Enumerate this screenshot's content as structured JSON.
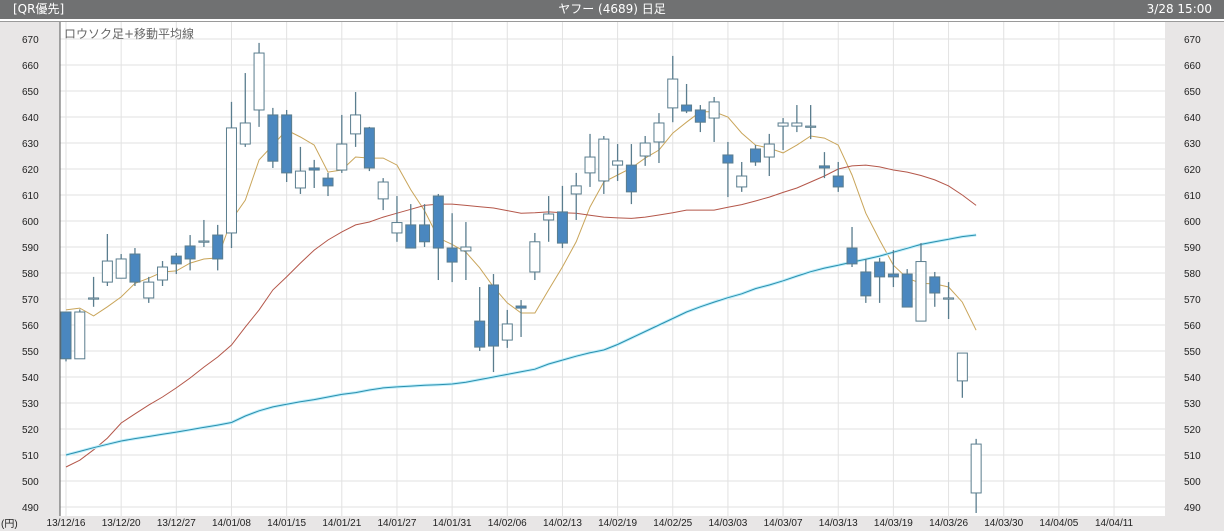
{
  "header": {
    "feed_label": "[QR優先]",
    "title": "ヤフー (4689) 日足",
    "timestamp": "3/28 15:00"
  },
  "colors": {
    "header_bg": "#707172",
    "axis_panel_bg": "#e8e6e6",
    "bear_fill": "#4a87bf",
    "candle_outline": "#5a7d8e",
    "ma_short": "#c9a55a",
    "ma_mid": "#b4574a",
    "ma_long": "#2a8fae"
  },
  "chart_data": {
    "type": "candlestick",
    "title": "ロウソク足+移動平均線",
    "ylabel": "(円)",
    "ylim": [
      490,
      670
    ],
    "yticks": [
      670,
      660,
      650,
      640,
      630,
      620,
      610,
      600,
      590,
      580,
      570,
      560,
      550,
      540,
      530,
      520,
      510,
      500,
      490
    ],
    "xtick_labels": [
      "13/12/16",
      "13/12/20",
      "13/12/27",
      "14/01/08",
      "14/01/15",
      "14/01/21",
      "14/01/27",
      "14/01/31",
      "14/02/06",
      "14/02/13",
      "14/02/19",
      "14/02/25",
      "14/03/03",
      "14/03/07",
      "14/03/13",
      "14/03/19",
      "14/03/26",
      "14/03/30",
      "14/04/05",
      "14/04/11"
    ],
    "grid": true,
    "candles": [
      {
        "o": 565,
        "h": 565,
        "l": 546,
        "c": 547
      },
      {
        "o": 547,
        "h": 566,
        "l": 547,
        "c": 565
      },
      {
        "o": 570,
        "h": 578.5,
        "l": 567,
        "c": 570.4
      },
      {
        "o": 576.5,
        "h": 595,
        "l": 575,
        "c": 584.6
      },
      {
        "o": 578,
        "h": 587.3,
        "l": 578,
        "c": 585.4
      },
      {
        "o": 587.3,
        "h": 589.6,
        "l": 575,
        "c": 576.5
      },
      {
        "o": 570.4,
        "h": 578.5,
        "l": 568.5,
        "c": 576.5
      },
      {
        "o": 577.3,
        "h": 584.6,
        "l": 575,
        "c": 582.3
      },
      {
        "o": 586.5,
        "h": 587.7,
        "l": 579.6,
        "c": 583.5
      },
      {
        "o": 590.4,
        "h": 594.6,
        "l": 581,
        "c": 585.4
      },
      {
        "o": 592,
        "h": 600.4,
        "l": 590,
        "c": 592.3
      },
      {
        "o": 594.6,
        "h": 598.5,
        "l": 581,
        "c": 585.4
      },
      {
        "o": 595.4,
        "h": 645.8,
        "l": 589.6,
        "c": 635.8
      },
      {
        "o": 629.6,
        "h": 656.9,
        "l": 628.5,
        "c": 637.7
      },
      {
        "o": 642.7,
        "h": 668.5,
        "l": 636.2,
        "c": 664.6
      },
      {
        "o": 640.8,
        "h": 643.5,
        "l": 620.4,
        "c": 623
      },
      {
        "o": 640.8,
        "h": 642.7,
        "l": 615,
        "c": 618.5
      },
      {
        "o": 612.7,
        "h": 628.5,
        "l": 610.4,
        "c": 619.2
      },
      {
        "o": 620.4,
        "h": 623.5,
        "l": 612.7,
        "c": 619.6
      },
      {
        "o": 616.5,
        "h": 618.5,
        "l": 609.6,
        "c": 613.5
      },
      {
        "o": 619.6,
        "h": 640.8,
        "l": 618.5,
        "c": 629.6
      },
      {
        "o": 633.5,
        "h": 649.6,
        "l": 628.5,
        "c": 640.8
      },
      {
        "o": 635.8,
        "h": 636.2,
        "l": 619.2,
        "c": 620.4
      },
      {
        "o": 608.5,
        "h": 616.5,
        "l": 604.2,
        "c": 615
      },
      {
        "o": 595.4,
        "h": 609.6,
        "l": 592,
        "c": 599.4
      },
      {
        "o": 598.5,
        "h": 606.5,
        "l": 589.6,
        "c": 589.6
      },
      {
        "o": 598.5,
        "h": 606.5,
        "l": 590,
        "c": 592
      },
      {
        "o": 609.6,
        "h": 610.4,
        "l": 577.3,
        "c": 589.6
      },
      {
        "o": 589.6,
        "h": 603,
        "l": 576.5,
        "c": 584.2
      },
      {
        "o": 588.5,
        "h": 599.6,
        "l": 577.3,
        "c": 590
      },
      {
        "o": 561.5,
        "h": 574.6,
        "l": 550,
        "c": 551.5
      },
      {
        "o": 575.4,
        "h": 579.6,
        "l": 541.9,
        "c": 551.9
      },
      {
        "o": 554.2,
        "h": 565.8,
        "l": 551.2,
        "c": 560.4
      },
      {
        "o": 567.3,
        "h": 569.6,
        "l": 555.4,
        "c": 566.5
      },
      {
        "o": 580.4,
        "h": 595.4,
        "l": 577.3,
        "c": 592
      },
      {
        "o": 600.4,
        "h": 609.6,
        "l": 592,
        "c": 602.7
      },
      {
        "o": 603.5,
        "h": 613.5,
        "l": 589.6,
        "c": 591.5
      },
      {
        "o": 610.4,
        "h": 618.5,
        "l": 600.4,
        "c": 613.5
      },
      {
        "o": 618.5,
        "h": 633.5,
        "l": 613.1,
        "c": 624.6
      },
      {
        "o": 615.4,
        "h": 632.7,
        "l": 610.4,
        "c": 631.5
      },
      {
        "o": 621.5,
        "h": 629.6,
        "l": 615.4,
        "c": 623.1
      },
      {
        "o": 621.5,
        "h": 629.6,
        "l": 606.5,
        "c": 611.2
      },
      {
        "o": 625,
        "h": 632.7,
        "l": 621.2,
        "c": 630
      },
      {
        "o": 630.4,
        "h": 641.5,
        "l": 622.3,
        "c": 637.7
      },
      {
        "o": 643.5,
        "h": 663.5,
        "l": 638,
        "c": 654.6
      },
      {
        "o": 644.6,
        "h": 652.7,
        "l": 641.5,
        "c": 642.3
      },
      {
        "o": 642.7,
        "h": 644.6,
        "l": 634.2,
        "c": 638
      },
      {
        "o": 639.6,
        "h": 647.7,
        "l": 630.4,
        "c": 645.8
      },
      {
        "o": 625.4,
        "h": 630.4,
        "l": 609.2,
        "c": 622.3
      },
      {
        "o": 613.1,
        "h": 622.7,
        "l": 611.2,
        "c": 617.3
      },
      {
        "o": 627.7,
        "h": 629.2,
        "l": 621.2,
        "c": 622.7
      },
      {
        "o": 624.6,
        "h": 633.5,
        "l": 617.3,
        "c": 629.6
      },
      {
        "o": 636.5,
        "h": 639.6,
        "l": 627.3,
        "c": 637.7
      },
      {
        "o": 636.5,
        "h": 644.6,
        "l": 634.2,
        "c": 637.7
      },
      {
        "o": 636.5,
        "h": 644.6,
        "l": 631.5,
        "c": 636.5
      },
      {
        "o": 621.2,
        "h": 626.5,
        "l": 616.5,
        "c": 620.4
      },
      {
        "o": 617.3,
        "h": 622.7,
        "l": 611.2,
        "c": 613.1
      },
      {
        "o": 589.6,
        "h": 597.7,
        "l": 582.3,
        "c": 583.5
      },
      {
        "o": 580.4,
        "h": 585.4,
        "l": 568.5,
        "c": 571.2
      },
      {
        "o": 584.2,
        "h": 585.8,
        "l": 568.5,
        "c": 578.5
      },
      {
        "o": 579.6,
        "h": 588.8,
        "l": 574.6,
        "c": 578.5
      },
      {
        "o": 579.6,
        "h": 581.5,
        "l": 566.9,
        "c": 566.9
      },
      {
        "o": 561.5,
        "h": 591.5,
        "l": 561.5,
        "c": 584.4
      },
      {
        "o": 578.5,
        "h": 580.4,
        "l": 567,
        "c": 572.3
      },
      {
        "o": 570.4,
        "h": 576.5,
        "l": 562.3,
        "c": 570.4
      },
      {
        "o": 538.5,
        "h": 549.2,
        "l": 532,
        "c": 549.2
      },
      {
        "o": 495.4,
        "h": 516.2,
        "l": 487.7,
        "c": 514.2
      }
    ],
    "moving_averages": [
      {
        "color_key": "ma_short",
        "values": [
          565.8,
          566.5,
          563.5,
          567,
          570.8,
          576,
          578,
          580.4,
          580.8,
          583.8,
          585.4,
          585.8,
          600.4,
          608,
          623.5,
          629.2,
          635,
          632.3,
          629.2,
          618.8,
          619.6,
          624.6,
          624.2,
          624.2,
          621.5,
          612,
          604,
          593.5,
          591,
          588,
          582,
          574.6,
          568.5,
          564.6,
          564.6,
          573.5,
          582.3,
          592,
          605.4,
          615,
          617.7,
          620.4,
          624.2,
          627.3,
          633.8,
          638,
          642,
          642,
          640,
          633.8,
          629.2,
          628,
          626.2,
          629.2,
          632.7,
          631.9,
          629.2,
          617.7,
          603,
          592.7,
          583,
          578,
          576,
          575.8,
          574.6,
          568.8,
          558
        ]
      },
      {
        "color_key": "ma_mid",
        "values": [
          505.4,
          508,
          512,
          516.5,
          522.3,
          525.8,
          529.2,
          532.3,
          535.8,
          539.6,
          543.8,
          547.7,
          552.3,
          559.2,
          565.8,
          573.5,
          578.5,
          583.8,
          588.8,
          592.7,
          595.8,
          598.5,
          599.6,
          601.5,
          603,
          604.5,
          606,
          606.5,
          606.5,
          606,
          605.5,
          605,
          604,
          603,
          603.2,
          603.5,
          603.2,
          603,
          602.2,
          601.5,
          601.2,
          601,
          601.5,
          602.3,
          603.2,
          604.2,
          604.2,
          604.2,
          605.3,
          606.3,
          607.7,
          609.2,
          611,
          612.7,
          615,
          617.3,
          620,
          621.2,
          621.5,
          620.8,
          619.6,
          618.8,
          617.5,
          615.8,
          613.5,
          610,
          606
        ]
      },
      {
        "color_key": "ma_long",
        "values": [
          510,
          511.4,
          512.8,
          514.1,
          515.4,
          516.3,
          517.1,
          518,
          518.8,
          519.7,
          520.6,
          521.5,
          522.5,
          525,
          527,
          528.5,
          529.5,
          530.5,
          531.3,
          532.3,
          533.3,
          534,
          535,
          535.8,
          536.2,
          536.5,
          536.8,
          537,
          537.3,
          538,
          539,
          540,
          541,
          542,
          543,
          545,
          546.5,
          548,
          549.3,
          550.4,
          552.5,
          555,
          557.5,
          560,
          562.5,
          565,
          567,
          568.8,
          570.5,
          572,
          574,
          575.4,
          577,
          578.8,
          580.5,
          581.9,
          583,
          584.2,
          585.3,
          586.5,
          588,
          589.5,
          591,
          592,
          593,
          594,
          594.6
        ]
      }
    ]
  }
}
